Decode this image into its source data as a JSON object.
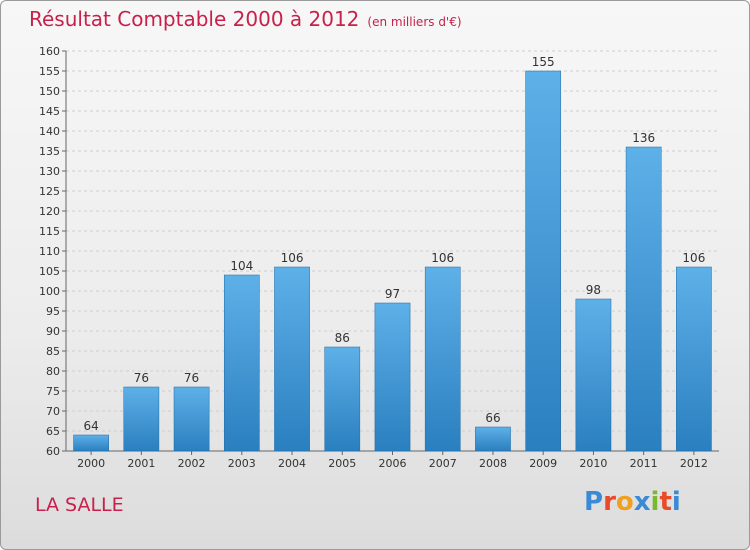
{
  "header": {
    "title": "Résultat Comptable 2000 à 2012",
    "subtitle": "(en milliers d'€)"
  },
  "footer": {
    "place_name": "LA SALLE",
    "logo_text": "Proxiti"
  },
  "colors": {
    "title": "#c8204a",
    "bar_top": "#5eb0e8",
    "bar_bottom": "#2a7fbf",
    "logo": [
      "#3a8ad6",
      "#e84a2a",
      "#f0a020",
      "#3a8ad6",
      "#7ab830",
      "#e84a2a",
      "#3a8ad6"
    ]
  },
  "chart_data": {
    "type": "bar",
    "title": "Résultat Comptable 2000 à 2012",
    "xlabel": "",
    "ylabel": "",
    "categories": [
      "2000",
      "2001",
      "2002",
      "2003",
      "2004",
      "2005",
      "2006",
      "2007",
      "2008",
      "2009",
      "2010",
      "2011",
      "2012"
    ],
    "values": [
      64,
      76,
      76,
      104,
      106,
      86,
      97,
      106,
      66,
      155,
      98,
      136,
      106
    ],
    "ylim": [
      60,
      160
    ],
    "yticks": [
      60,
      65,
      70,
      75,
      80,
      85,
      90,
      95,
      100,
      105,
      110,
      115,
      120,
      125,
      130,
      135,
      140,
      145,
      150,
      155,
      160
    ],
    "grid": true,
    "data_labels": true
  }
}
